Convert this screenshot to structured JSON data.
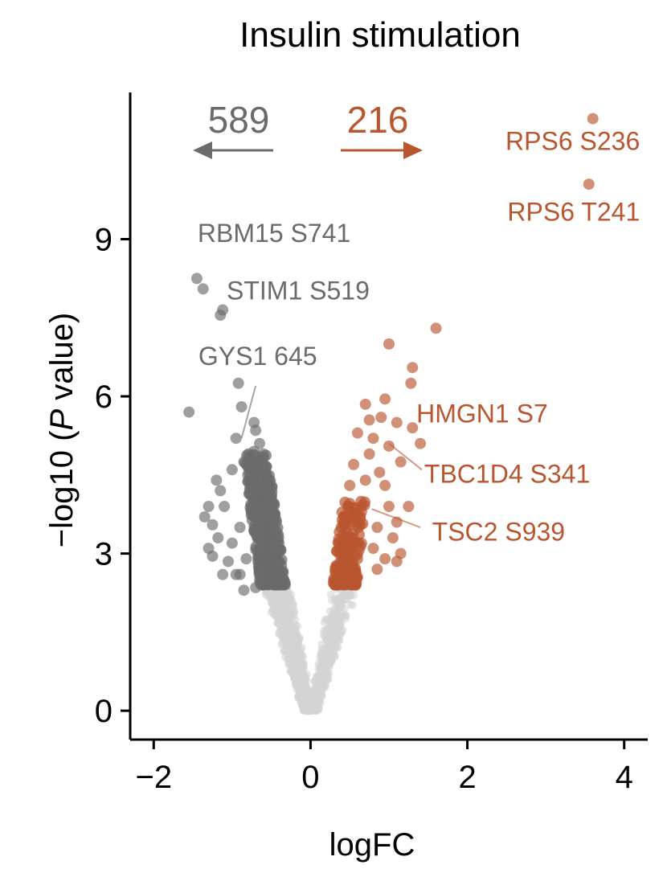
{
  "chart_data": {
    "type": "scatter",
    "title": "Insulin stimulation",
    "xlabel": "logFC",
    "ylabel_prefix": "−log10 (",
    "ylabel_italic": "P",
    "ylabel_suffix": " value)",
    "xlim": [
      -2.3,
      4.3
    ],
    "ylim": [
      -0.55,
      11.8
    ],
    "x_ticks": [
      -2,
      0,
      2,
      4
    ],
    "x_tick_labels": [
      "−2",
      "0",
      "2",
      "4"
    ],
    "y_ticks": [
      0,
      3,
      6,
      9
    ],
    "y_tick_labels": [
      "0",
      "3",
      "6",
      "9"
    ],
    "grid": false,
    "colors": {
      "down": "#6b6b6b",
      "up": "#b9562f",
      "ns": "#d4d4d4"
    },
    "counts": {
      "down": {
        "value": "589",
        "direction": "left"
      },
      "up": {
        "value": "216",
        "direction": "right"
      }
    },
    "significance_threshold_y": 2.4,
    "down_points": [
      [
        -1.55,
        5.7
      ],
      [
        -1.45,
        8.25
      ],
      [
        -1.37,
        8.05
      ],
      [
        -1.15,
        7.55
      ],
      [
        -1.12,
        7.65
      ],
      [
        -0.92,
        6.25
      ],
      [
        -0.88,
        5.8
      ],
      [
        -0.95,
        5.2
      ],
      [
        -0.85,
        4.75
      ],
      [
        -1.0,
        4.6
      ],
      [
        -1.15,
        4.2
      ],
      [
        -1.3,
        3.9
      ],
      [
        -1.25,
        3.55
      ],
      [
        -1.35,
        3.7
      ],
      [
        -1.18,
        3.3
      ],
      [
        -1.3,
        3.1
      ],
      [
        -1.25,
        2.95
      ],
      [
        -1.05,
        2.85
      ],
      [
        -1.12,
        2.6
      ],
      [
        -0.9,
        3.5
      ],
      [
        -0.9,
        2.6
      ],
      [
        -0.85,
        2.3
      ],
      [
        -0.95,
        2.6
      ],
      [
        -0.72,
        5.5
      ],
      [
        -0.7,
        5.35
      ],
      [
        -0.65,
        5.1
      ],
      [
        -0.6,
        4.9
      ],
      [
        -0.72,
        4.95
      ],
      [
        -0.8,
        4.5
      ],
      [
        -1.1,
        3.9
      ],
      [
        -0.82,
        2.9
      ],
      [
        -0.7,
        2.35
      ],
      [
        -1.0,
        3.2
      ],
      [
        -1.2,
        4.4
      ],
      [
        -0.75,
        4.2
      ]
    ],
    "up_points": [
      [
        3.6,
        11.3
      ],
      [
        3.55,
        10.05
      ],
      [
        1.6,
        7.3
      ],
      [
        1.0,
        7.0
      ],
      [
        1.3,
        6.55
      ],
      [
        1.28,
        6.25
      ],
      [
        0.7,
        5.85
      ],
      [
        0.95,
        5.95
      ],
      [
        0.9,
        5.6
      ],
      [
        0.75,
        5.55
      ],
      [
        1.1,
        5.5
      ],
      [
        1.3,
        5.4
      ],
      [
        0.6,
        5.3
      ],
      [
        0.8,
        5.2
      ],
      [
        1.0,
        5.05
      ],
      [
        1.4,
        5.1
      ],
      [
        0.55,
        4.7
      ],
      [
        0.75,
        4.9
      ],
      [
        1.15,
        4.75
      ],
      [
        0.88,
        4.55
      ],
      [
        0.5,
        4.3
      ],
      [
        0.7,
        4.4
      ],
      [
        0.95,
        4.3
      ],
      [
        1.0,
        3.9
      ],
      [
        0.65,
        3.8
      ],
      [
        0.85,
        3.5
      ],
      [
        1.1,
        3.6
      ],
      [
        1.05,
        3.3
      ],
      [
        1.15,
        3.0
      ],
      [
        0.95,
        2.9
      ],
      [
        0.8,
        3.1
      ],
      [
        1.1,
        2.85
      ],
      [
        0.85,
        2.7
      ],
      [
        0.65,
        3.2
      ],
      [
        1.25,
        3.9
      ],
      [
        0.6,
        2.55
      ]
    ],
    "labeled_points": [
      {
        "label": "RPS6 S236",
        "group": "up",
        "x": 3.6,
        "y": 11.3,
        "anchor": "end",
        "label_x": 4.2,
        "label_y": 10.7,
        "leader": false
      },
      {
        "label": "RPS6 T241",
        "group": "up",
        "x": 3.55,
        "y": 10.05,
        "anchor": "end",
        "label_x": 4.2,
        "label_y": 9.35,
        "leader": false
      },
      {
        "label": "RBM15 S741",
        "group": "down",
        "x": -1.45,
        "y": 8.25,
        "anchor": "start",
        "label_x": -1.44,
        "label_y": 8.95,
        "leader": false
      },
      {
        "label": "STIM1 S519",
        "group": "down",
        "x": -1.15,
        "y": 7.55,
        "anchor": "start",
        "label_x": -1.07,
        "label_y": 7.85,
        "leader": false
      },
      {
        "label": "GYS1 645",
        "group": "down",
        "x": -0.88,
        "y": 5.2,
        "anchor": "start",
        "label_x": -1.43,
        "label_y": 6.6,
        "leader": true,
        "leader_to_x": -0.7,
        "leader_to_y": 6.2
      },
      {
        "label": "HMGN1 S7",
        "group": "up",
        "x": 1.1,
        "y": 5.5,
        "anchor": "start",
        "label_x": 1.35,
        "label_y": 5.5,
        "leader": false
      },
      {
        "label": "TBC1D4 S341",
        "group": "up",
        "x": 1.0,
        "y": 5.1,
        "anchor": "start",
        "label_x": 1.45,
        "label_y": 4.35,
        "leader": true,
        "leader_to_x": 1.42,
        "leader_to_y": 4.6
      },
      {
        "label": "TSC2 S939",
        "group": "up",
        "x": 0.78,
        "y": 3.85,
        "anchor": "start",
        "label_x": 1.55,
        "label_y": 3.25,
        "leader": true,
        "leader_to_x": 1.4,
        "leader_to_y": 3.5
      }
    ]
  }
}
